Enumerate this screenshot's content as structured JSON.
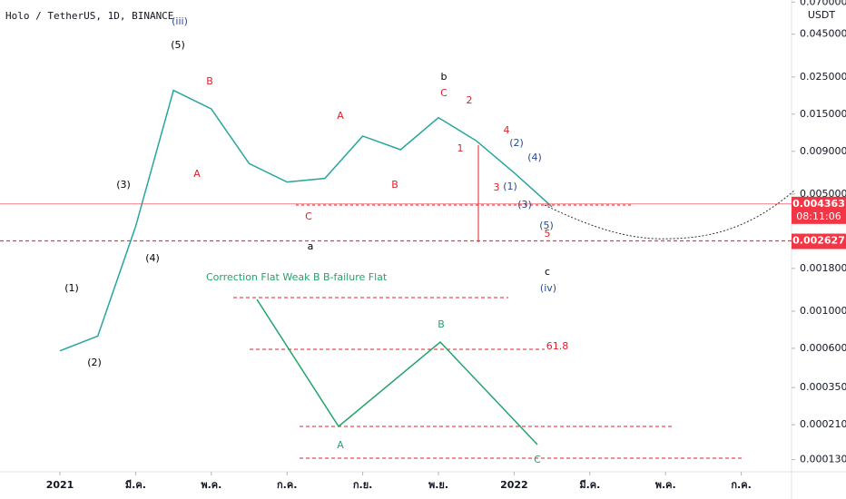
{
  "header": {
    "symbol": "Holo / TetherUS, 1D, BINANCE",
    "currency": "USDT"
  },
  "chart_data": {
    "type": "line",
    "log_scale": true,
    "series": [
      {
        "name": "Holo / TetherUS",
        "color": "#26a69a",
        "x": [
          "2021-01",
          "2021-02",
          "2021-03",
          "2021-04",
          "2021-05",
          "2021-06",
          "2021-07",
          "2021-08",
          "2021-09",
          "2021-10",
          "2021-11",
          "2021-12",
          "2022-01",
          "2022-02"
        ],
        "values": [
          0.00058,
          0.00071,
          0.0032,
          0.0208,
          0.0161,
          0.0076,
          0.0059,
          0.0062,
          0.0111,
          0.0092,
          0.0143,
          0.0104,
          0.0067,
          0.0042
        ]
      }
    ],
    "ylim": [
      0.00011,
      0.072
    ],
    "yticks": [
      {
        "value": 0.07,
        "label": "0.070000"
      },
      {
        "value": 0.045,
        "label": "0.045000"
      },
      {
        "value": 0.025,
        "label": "0.025000"
      },
      {
        "value": 0.015,
        "label": "0.015000"
      },
      {
        "value": 0.009,
        "label": "0.009000"
      },
      {
        "value": 0.005,
        "label": "0.005000"
      },
      {
        "value": 0.0018,
        "label": "0.001800"
      },
      {
        "value": 0.001,
        "label": "0.001000"
      },
      {
        "value": 0.0006,
        "label": "0.000600"
      },
      {
        "value": 0.00035,
        "label": "0.000350"
      },
      {
        "value": 0.00021,
        "label": "0.000210"
      },
      {
        "value": 0.00013,
        "label": "0.000130"
      }
    ],
    "xticks": [
      {
        "value": "2021-01",
        "label": "2021"
      },
      {
        "value": "2021-03",
        "label": "มี.ค."
      },
      {
        "value": "2021-05",
        "label": "พ.ค."
      },
      {
        "value": "2021-07",
        "label": "ก.ค."
      },
      {
        "value": "2021-09",
        "label": "ก.ย."
      },
      {
        "value": "2021-11",
        "label": "พ.ย."
      },
      {
        "value": "2022-01",
        "label": "2022"
      },
      {
        "value": "2022-03",
        "label": "มี.ค."
      },
      {
        "value": "2022-05",
        "label": "พ.ค."
      },
      {
        "value": "2022-07",
        "label": "ก.ค."
      }
    ],
    "price_lines": [
      {
        "value": 0.004363,
        "countdown": "08:11:06",
        "color": "#f23645"
      },
      {
        "value": 0.002627,
        "color": "#f23645"
      }
    ],
    "flat_title": "Correction Flat Weak B B-failure Flat",
    "annotations": [
      {
        "text": "(iii)",
        "color": "#2a4a8a"
      },
      {
        "text": "(5)",
        "color": "#000000"
      },
      {
        "text": "(3)",
        "color": "#000000"
      },
      {
        "text": "(1)",
        "color": "#000000"
      },
      {
        "text": "(2)",
        "color": "#000000"
      },
      {
        "text": "(4)",
        "color": "#000000"
      },
      {
        "text": "b",
        "color": "#000000"
      },
      {
        "text": "a",
        "color": "#000000"
      },
      {
        "text": "c",
        "color": "#000000"
      },
      {
        "text": "(iv)",
        "color": "#2a4a8a"
      },
      {
        "text": "(2)",
        "color": "#2a4a8a"
      },
      {
        "text": "(4)",
        "color": "#2a4a8a"
      },
      {
        "text": "(1)",
        "color": "#2a4a8a"
      },
      {
        "text": "(3)",
        "color": "#2a4a8a"
      },
      {
        "text": "(5)",
        "color": "#2a4a8a"
      },
      {
        "text": "B",
        "color": "#e0202a"
      },
      {
        "text": "A",
        "color": "#e0202a"
      },
      {
        "text": "A",
        "color": "#e0202a"
      },
      {
        "text": "B",
        "color": "#e0202a"
      },
      {
        "text": "C",
        "color": "#e0202a"
      },
      {
        "text": "C",
        "color": "#e0202a"
      },
      {
        "text": "2",
        "color": "#e0202a"
      },
      {
        "text": "1",
        "color": "#e0202a"
      },
      {
        "text": "4",
        "color": "#e0202a"
      },
      {
        "text": "3",
        "color": "#e0202a"
      },
      {
        "text": "5",
        "color": "#e0202a"
      },
      {
        "text": "A",
        "color": "#22a36a"
      },
      {
        "text": "B",
        "color": "#22a36a"
      },
      {
        "text": "C",
        "color": "#22a36a"
      },
      {
        "text": "61.8",
        "color": "#e0202a"
      }
    ]
  }
}
